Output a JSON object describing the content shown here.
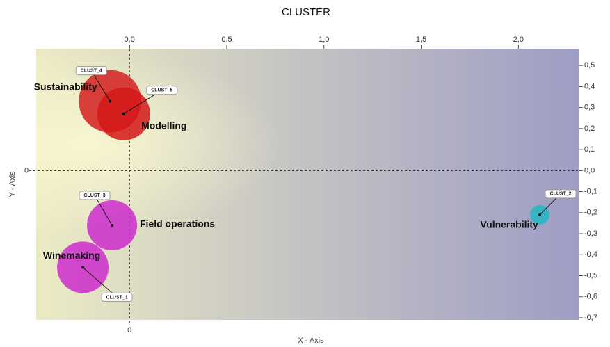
{
  "chart_data": {
    "type": "bubble",
    "title": "CLUSTER",
    "x_label": "X - Axis",
    "y_label": "Y - Axis",
    "xlim": [
      -0.48,
      2.31
    ],
    "ylim": [
      -0.71,
      0.58
    ],
    "xticks": [
      {
        "value": 0,
        "label": "0,0"
      },
      {
        "value": 0.5,
        "label": "0,5"
      },
      {
        "value": 1,
        "label": "1,0"
      },
      {
        "value": 1.5,
        "label": "1,5"
      },
      {
        "value": 2,
        "label": "2,0"
      }
    ],
    "yticks": [
      {
        "value": 0.5,
        "label": "0,5"
      },
      {
        "value": 0.4,
        "label": "0,4"
      },
      {
        "value": 0.3,
        "label": "0,3"
      },
      {
        "value": 0.2,
        "label": "0,2"
      },
      {
        "value": 0.1,
        "label": "0,1"
      },
      {
        "value": 0,
        "label": "0,0"
      },
      {
        "value": -0.1,
        "label": "-0,1"
      },
      {
        "value": -0.2,
        "label": "-0,2"
      },
      {
        "value": -0.3,
        "label": "-0,3"
      },
      {
        "value": -0.4,
        "label": "-0,4"
      },
      {
        "value": -0.5,
        "label": "-0,5"
      },
      {
        "value": -0.6,
        "label": "-0,6"
      },
      {
        "value": -0.7,
        "label": "-0,7"
      }
    ],
    "x_zero_label": 0,
    "y_zero_label": 0,
    "points": [
      {
        "id": "CLUST_4",
        "label": "Sustainability",
        "x": -0.1,
        "y": 0.33,
        "size": 45,
        "color": "#d42020"
      },
      {
        "id": "CLUST_5",
        "label": "Modelling",
        "x": -0.03,
        "y": 0.27,
        "size": 38,
        "color": "#d41818"
      },
      {
        "id": "CLUST_3",
        "label": "Field operations",
        "x": -0.09,
        "y": -0.26,
        "size": 36,
        "color": "#cc2ccc"
      },
      {
        "id": "CLUST_1",
        "label": "Winemaking",
        "x": -0.24,
        "y": -0.46,
        "size": 37,
        "color": "#cc2ccc"
      },
      {
        "id": "CLUST_2",
        "label": "Vulnerability",
        "x": 2.11,
        "y": -0.21,
        "size": 14,
        "color": "#22b8c4"
      }
    ]
  }
}
